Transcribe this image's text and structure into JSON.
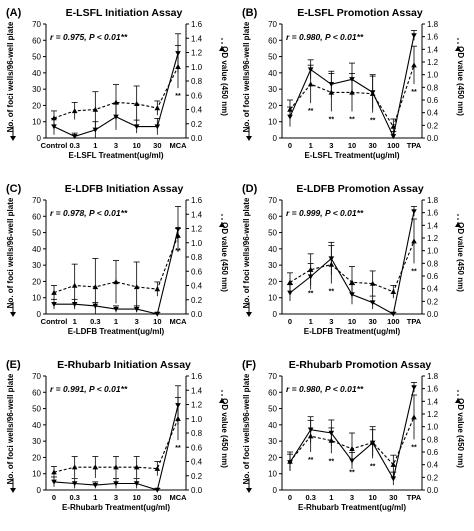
{
  "figure": {
    "panels": [
      {
        "label": "(A)",
        "title": "E-LSFL Initiation Assay",
        "stat": "r = 0.975, P < 0.01**"
      },
      {
        "label": "(B)",
        "title": "E-LSFL Promotion Assay",
        "stat": "r = 0.980, P < 0.01**"
      },
      {
        "label": "(C)",
        "title": "E-LDFB Initiation Assay",
        "stat": "r = 0.978, P < 0.01**"
      },
      {
        "label": "(D)",
        "title": "E-LDFB Promotion Assay",
        "stat": "r = 0.999, P < 0.01**"
      },
      {
        "label": "(E)",
        "title": "E-Rhubarb Initiation Assay",
        "stat": "r = 0.991, P < 0.01**"
      },
      {
        "label": "(F)",
        "title": "E-Rhubarb Promotion Assay",
        "stat": "r = 0.980, P < 0.01**"
      }
    ]
  },
  "colors": {
    "solid_line": "#000000",
    "dashed_line": "#000000",
    "axis": "#000000",
    "background": "#ffffff"
  },
  "chart_data": [
    {
      "type": "line",
      "title": "E-LSFL Initiation Assay",
      "annotation": "r = 0.975, P < 0.01**",
      "categories": [
        "Control",
        "0.3",
        "1",
        "3",
        "10",
        "30",
        "MCA"
      ],
      "xlabel": "E-LSFL Treatment(ug/ml)",
      "ylabel_left": "No. of foci wells/96-well plate",
      "ylabel_right": "OD value (450 nm)",
      "ylim_left": [
        0,
        70
      ],
      "ylim_right": [
        0,
        1.6
      ],
      "yticks_left": [
        0,
        10,
        20,
        30,
        40,
        50,
        60,
        70
      ],
      "yticks_right": [
        0.0,
        0.2,
        0.4,
        0.6,
        0.8,
        1.0,
        1.2,
        1.4,
        1.6
      ],
      "series": [
        {
          "axis": "left",
          "style": "solid",
          "values": [
            7,
            1,
            5,
            13,
            7,
            7,
            52
          ],
          "errors": [
            5,
            2,
            5,
            8,
            4,
            5,
            12
          ]
        },
        {
          "axis": "right",
          "style": "dashed",
          "values": [
            0.28,
            0.38,
            0.4,
            0.5,
            0.48,
            0.42,
            1.0
          ],
          "errors": [
            0.1,
            0.12,
            0.25,
            0.25,
            0.25,
            0.1,
            0.3
          ]
        }
      ],
      "significance": [
        {
          "index": 6,
          "mark": "**"
        }
      ]
    },
    {
      "type": "line",
      "title": "E-LSFL Promotion Assay",
      "annotation": "r = 0.980, P < 0.01**",
      "categories": [
        "0",
        "1",
        "3",
        "10",
        "30",
        "100",
        "TPA"
      ],
      "xlabel": "E-LSFL Treatment(ug/ml)",
      "ylabel_left": "No. of foci wells/96-well plate",
      "ylabel_right": "OD value (450 nm)",
      "ylim_left": [
        0,
        70
      ],
      "ylim_right": [
        0,
        1.8
      ],
      "yticks_left": [
        0,
        10,
        20,
        30,
        40,
        50,
        60,
        70
      ],
      "yticks_right": [
        0.0,
        0.2,
        0.4,
        0.6,
        0.8,
        1.0,
        1.2,
        1.4,
        1.6,
        1.8
      ],
      "series": [
        {
          "axis": "left",
          "style": "solid",
          "values": [
            13,
            42,
            33,
            36,
            28,
            1,
            63
          ],
          "errors": [
            6,
            6,
            8,
            10,
            10,
            3,
            3
          ]
        },
        {
          "axis": "right",
          "style": "dashed",
          "values": [
            0.45,
            0.85,
            0.72,
            0.72,
            0.7,
            0.18,
            1.15
          ],
          "errors": [
            0.15,
            0.3,
            0.3,
            0.3,
            0.3,
            0.12,
            0.3
          ]
        }
      ],
      "significance": [
        {
          "index": 1,
          "mark": "**"
        },
        {
          "index": 2,
          "mark": "**"
        },
        {
          "index": 3,
          "mark": "**"
        },
        {
          "index": 4,
          "mark": "**"
        },
        {
          "index": 6,
          "mark": "**"
        }
      ]
    },
    {
      "type": "line",
      "title": "E-LDFB Initiation Assay",
      "annotation": "r = 0.978, P < 0.01**",
      "categories": [
        "Control",
        "1",
        "0.3",
        "1",
        "3",
        "10",
        "MCA"
      ],
      "xlabel": "E-LDFB Treatment(ug/ml)",
      "ylabel_left": "No. of foci wells/96-well plate",
      "ylabel_right": "OD value (450 nm)",
      "ylim_left": [
        0,
        70
      ],
      "ylim_right": [
        0,
        1.6
      ],
      "yticks_left": [
        0,
        10,
        20,
        30,
        40,
        50,
        60,
        70
      ],
      "yticks_right": [
        0.0,
        0.2,
        0.4,
        0.6,
        0.8,
        1.0,
        1.2,
        1.4,
        1.6
      ],
      "series": [
        {
          "axis": "left",
          "style": "solid",
          "values": [
            6,
            6,
            5,
            3,
            3,
            0,
            52
          ],
          "errors": [
            3,
            3,
            2,
            2,
            2,
            1,
            14
          ]
        },
        {
          "axis": "right",
          "style": "dashed",
          "values": [
            0.3,
            0.4,
            0.38,
            0.45,
            0.38,
            0.35,
            1.1
          ],
          "errors": [
            0.1,
            0.3,
            0.4,
            0.3,
            0.35,
            0.1,
            0.1
          ]
        }
      ],
      "significance": [
        {
          "index": 6,
          "mark": "**"
        }
      ]
    },
    {
      "type": "line",
      "title": "E-LDFB Promotion Assay",
      "annotation": "r = 0.999, P < 0.01**",
      "categories": [
        "0",
        "1",
        "3",
        "10",
        "30",
        "100",
        "TPA"
      ],
      "xlabel": "E-LDFB Treatment(ug/ml)",
      "ylabel_left": "No. of foci wells/96-well plate",
      "ylabel_right": "OD value (450 nm)",
      "ylim_left": [
        0,
        70
      ],
      "ylim_right": [
        0,
        1.8
      ],
      "yticks_left": [
        0,
        10,
        20,
        30,
        40,
        50,
        60,
        70
      ],
      "yticks_right": [
        0.0,
        0.2,
        0.4,
        0.6,
        0.8,
        1.0,
        1.2,
        1.4,
        1.6,
        1.8
      ],
      "series": [
        {
          "axis": "left",
          "style": "solid",
          "values": [
            13,
            23,
            34,
            12,
            7,
            0,
            63
          ],
          "errors": [
            5,
            8,
            10,
            6,
            4,
            1,
            3
          ]
        },
        {
          "axis": "right",
          "style": "dashed",
          "values": [
            0.5,
            0.7,
            0.78,
            0.5,
            0.48,
            0.35,
            1.15
          ],
          "errors": [
            0.15,
            0.25,
            0.3,
            0.25,
            0.2,
            0.1,
            0.35
          ]
        }
      ],
      "significance": [
        {
          "index": 1,
          "mark": "**"
        },
        {
          "index": 2,
          "mark": "**"
        },
        {
          "index": 6,
          "mark": "**"
        }
      ]
    },
    {
      "type": "line",
      "title": "E-Rhubarb Initiation Assay",
      "annotation": "r = 0.991, P < 0.01**",
      "categories": [
        "0",
        "0.3",
        "1",
        "3",
        "10",
        "30",
        "MCA"
      ],
      "xlabel": "E-Rhubarb Treatment(ug/ml)",
      "ylabel_left": "No. of foci wells/96-well plate",
      "ylabel_right": "OD value (450 nm)",
      "ylim_left": [
        0,
        70
      ],
      "ylim_right": [
        0,
        1.6
      ],
      "yticks_left": [
        0,
        10,
        20,
        30,
        40,
        50,
        60,
        70
      ],
      "yticks_right": [
        0.0,
        0.2,
        0.4,
        0.6,
        0.8,
        1.0,
        1.2,
        1.4,
        1.6
      ],
      "series": [
        {
          "axis": "left",
          "style": "solid",
          "values": [
            5,
            4,
            3,
            4,
            4,
            0,
            52
          ],
          "errors": [
            3,
            3,
            2,
            3,
            3,
            1,
            12
          ]
        },
        {
          "axis": "right",
          "style": "dashed",
          "values": [
            0.25,
            0.32,
            0.32,
            0.32,
            0.32,
            0.3,
            1.0
          ],
          "errors": [
            0.08,
            0.15,
            0.15,
            0.15,
            0.15,
            0.1,
            0.3
          ]
        }
      ],
      "significance": [
        {
          "index": 6,
          "mark": "**"
        }
      ]
    },
    {
      "type": "line",
      "title": "E-Rhubarb Promotion Assay",
      "annotation": "r = 0.980, P < 0.01**",
      "categories": [
        "0",
        "0.3",
        "1",
        "3",
        "10",
        "30",
        "TPA"
      ],
      "xlabel": "E-Rhubarb Treatment(ug/ml)",
      "ylabel_left": "No. of foci wells/96-well plate",
      "ylabel_right": "OD value (450 nm)",
      "ylim_left": [
        0,
        70
      ],
      "ylim_right": [
        0,
        1.8
      ],
      "yticks_left": [
        0,
        10,
        20,
        30,
        40,
        50,
        60,
        70
      ],
      "yticks_right": [
        0.0,
        0.2,
        0.4,
        0.6,
        0.8,
        1.0,
        1.2,
        1.4,
        1.6,
        1.8
      ],
      "series": [
        {
          "axis": "left",
          "style": "solid",
          "values": [
            17,
            37,
            35,
            18,
            29,
            7,
            63
          ],
          "errors": [
            5,
            8,
            8,
            5,
            8,
            4,
            3
          ]
        },
        {
          "axis": "right",
          "style": "dashed",
          "values": [
            0.45,
            0.85,
            0.78,
            0.65,
            0.75,
            0.4,
            1.15
          ],
          "errors": [
            0.15,
            0.25,
            0.2,
            0.25,
            0.25,
            0.15,
            0.35
          ]
        }
      ],
      "significance": [
        {
          "index": 1,
          "mark": "**"
        },
        {
          "index": 2,
          "mark": "**"
        },
        {
          "index": 3,
          "mark": "**"
        },
        {
          "index": 4,
          "mark": "**"
        },
        {
          "index": 6,
          "mark": "**"
        }
      ]
    }
  ]
}
